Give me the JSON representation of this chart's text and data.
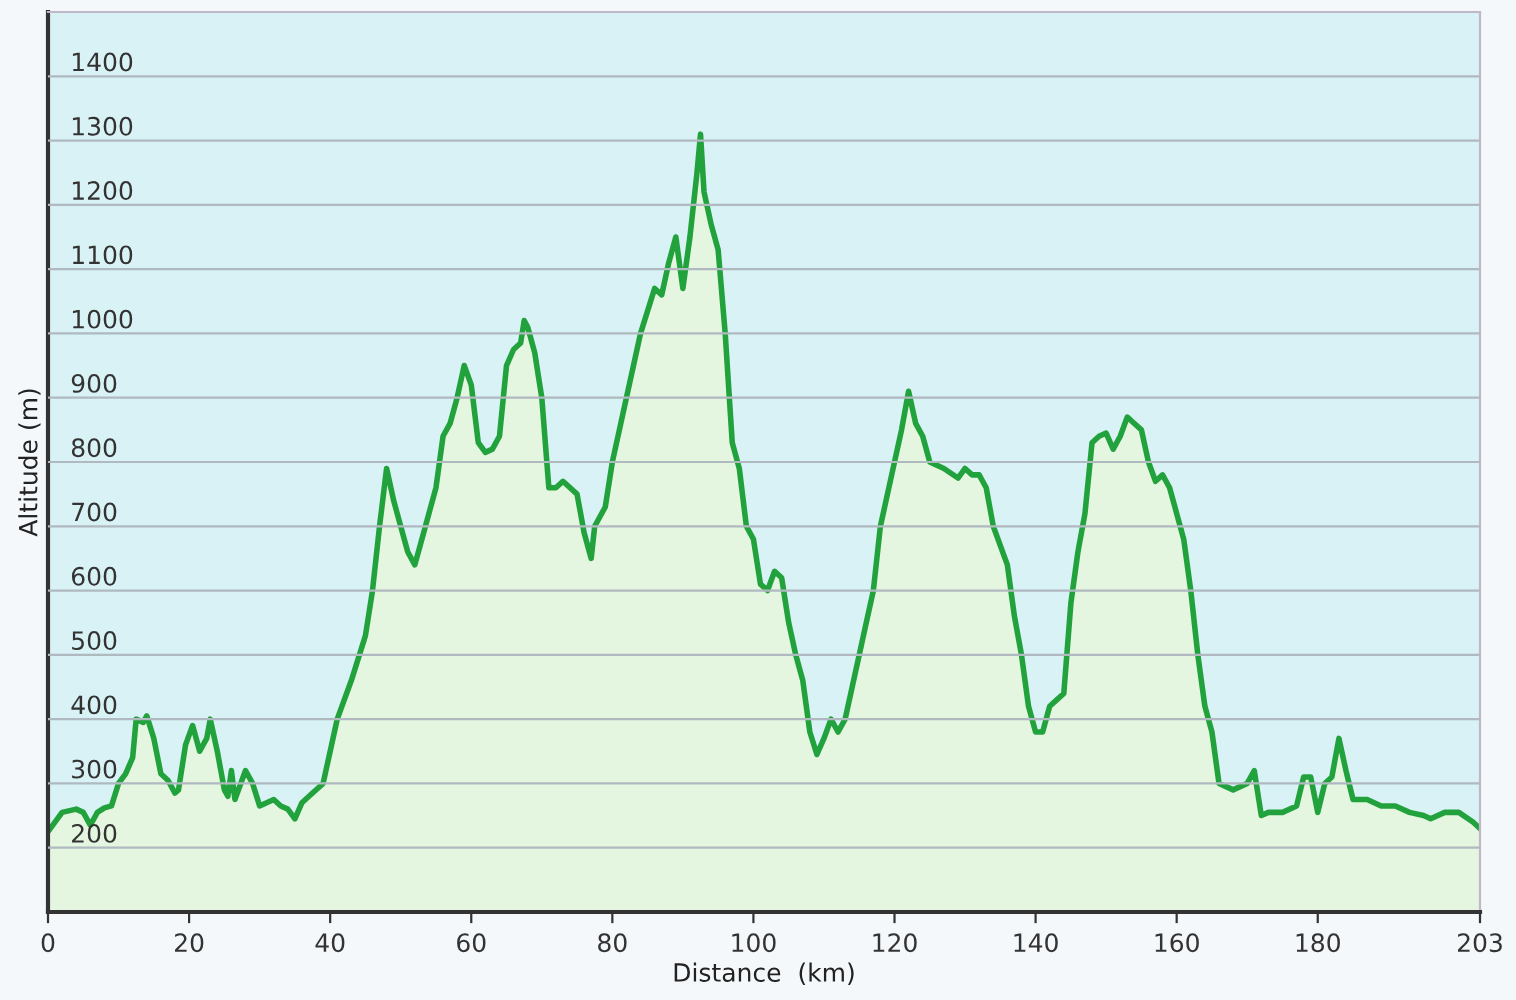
{
  "chart_data": {
    "type": "area",
    "xlabel": "Distance  (km)",
    "ylabel": "Altitude (m)",
    "xlim": [
      0,
      203
    ],
    "xticks": [
      0,
      20,
      40,
      60,
      80,
      100,
      120,
      140,
      160,
      180,
      203
    ],
    "ylim": [
      100,
      1500
    ],
    "yticks": [
      200,
      300,
      400,
      500,
      600,
      700,
      800,
      900,
      1000,
      1100,
      1200,
      1300,
      1400
    ],
    "grid": "y",
    "legend": false,
    "series": [
      {
        "color": "#22a23c",
        "x": [
          0,
          2,
          4,
          5,
          6,
          7,
          8,
          9,
          10,
          11,
          12,
          12.5,
          13.5,
          14,
          15,
          16,
          17,
          18,
          18.5,
          19.5,
          20.5,
          21.5,
          22.5,
          23,
          24,
          25,
          25.5,
          26,
          26.5,
          28,
          29,
          30,
          32,
          33,
          34,
          35,
          36,
          37,
          39,
          40,
          41,
          43,
          45,
          46,
          47,
          48,
          49,
          50,
          51,
          52,
          53,
          55,
          56,
          57,
          58,
          59,
          60,
          61,
          62,
          63,
          64,
          65,
          66,
          67,
          67.5,
          68,
          69,
          70,
          71,
          72,
          73,
          75,
          76,
          77,
          77.5,
          79,
          80,
          82,
          84,
          86,
          87,
          88,
          89,
          90,
          91,
          92,
          92.5,
          93,
          94,
          95,
          96,
          97,
          98,
          99,
          100,
          101,
          102,
          103,
          104,
          105,
          106,
          107,
          108,
          109,
          110,
          111,
          112,
          113,
          115,
          116,
          117,
          118,
          120,
          121,
          122,
          123,
          124,
          125,
          127,
          129,
          130,
          131,
          132,
          133,
          134,
          136,
          137,
          138,
          139,
          140,
          141,
          142,
          143,
          144,
          145,
          146,
          147,
          148,
          149,
          150,
          151,
          152,
          153,
          154,
          155,
          156,
          157,
          158,
          159,
          160,
          161,
          162,
          163,
          164,
          165,
          166,
          167,
          168,
          169,
          170,
          171,
          172,
          173,
          175,
          177,
          178,
          179,
          180,
          181,
          182,
          183,
          184,
          185,
          187,
          189,
          191,
          193,
          195,
          196,
          198,
          200,
          202,
          203
        ],
        "values": [
          225,
          255,
          260,
          255,
          235,
          255,
          262,
          265,
          300,
          315,
          340,
          400,
          395,
          405,
          370,
          315,
          305,
          285,
          290,
          360,
          390,
          350,
          370,
          400,
          350,
          290,
          280,
          320,
          275,
          320,
          300,
          265,
          275,
          265,
          260,
          245,
          270,
          280,
          300,
          350,
          400,
          460,
          530,
          600,
          700,
          790,
          740,
          700,
          660,
          640,
          680,
          760,
          840,
          860,
          900,
          950,
          920,
          830,
          815,
          820,
          840,
          950,
          975,
          985,
          1020,
          1010,
          970,
          900,
          760,
          760,
          770,
          750,
          690,
          650,
          700,
          730,
          800,
          900,
          1000,
          1070,
          1060,
          1110,
          1150,
          1070,
          1150,
          1250,
          1310,
          1220,
          1170,
          1130,
          1000,
          830,
          790,
          700,
          680,
          610,
          600,
          630,
          620,
          550,
          500,
          460,
          380,
          345,
          370,
          400,
          380,
          400,
          500,
          550,
          600,
          700,
          800,
          850,
          910,
          860,
          840,
          800,
          790,
          775,
          790,
          780,
          780,
          760,
          700,
          640,
          560,
          500,
          420,
          380,
          380,
          420,
          430,
          440,
          580,
          660,
          720,
          830,
          840,
          845,
          820,
          840,
          870,
          860,
          850,
          800,
          770,
          780,
          760,
          720,
          680,
          600,
          500,
          420,
          380,
          300,
          295,
          290,
          295,
          300,
          320,
          250,
          255,
          255,
          265,
          310,
          310,
          255,
          300,
          310,
          370,
          320,
          275,
          275,
          265,
          265,
          255,
          250,
          245,
          255,
          255,
          240,
          230
        ]
      }
    ]
  }
}
